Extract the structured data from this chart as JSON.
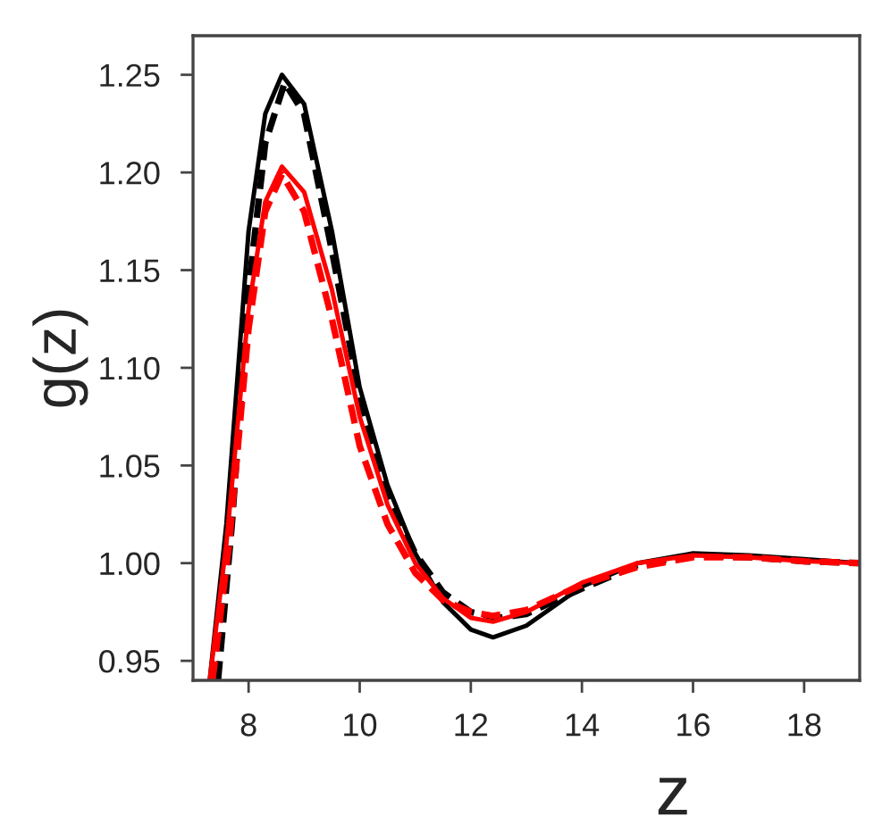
{
  "chart_data": {
    "type": "line",
    "xlabel": "z",
    "ylabel": "g(z)",
    "xlim": [
      7.0,
      19.0
    ],
    "ylim": [
      0.94,
      1.27
    ],
    "xticks": [
      8,
      10,
      12,
      14,
      16,
      18
    ],
    "yticks": [
      {
        "value": 0.95,
        "label": "0.95"
      },
      {
        "value": 1.0,
        "label": "1.00"
      },
      {
        "value": 1.05,
        "label": "1.05"
      },
      {
        "value": 1.1,
        "label": "1.10"
      },
      {
        "value": 1.15,
        "label": "1.15"
      },
      {
        "value": 1.2,
        "label": "1.20"
      },
      {
        "value": 1.25,
        "label": "1.25"
      }
    ],
    "grid": false,
    "legend": false,
    "series": [
      {
        "color": "#000000",
        "line_style": "solid",
        "x": [
          7.3,
          7.6,
          8.0,
          8.3,
          8.6,
          9.0,
          9.5,
          10.0,
          10.5,
          11.0,
          11.5,
          12.0,
          12.4,
          13.0,
          14.0,
          15.0,
          16.0,
          17.0,
          18.0,
          19.0
        ],
        "values": [
          0.94,
          1.02,
          1.17,
          1.23,
          1.25,
          1.235,
          1.17,
          1.09,
          1.04,
          1.005,
          0.98,
          0.966,
          0.962,
          0.968,
          0.988,
          1.0,
          1.005,
          1.004,
          1.002,
          1.0
        ]
      },
      {
        "color": "#000000",
        "line_style": "dashed",
        "x": [
          7.45,
          7.7,
          8.0,
          8.3,
          8.65,
          9.0,
          9.5,
          10.0,
          10.5,
          11.0,
          11.5,
          12.0,
          12.5,
          13.0,
          14.0,
          15.0,
          16.0,
          17.0,
          18.0,
          19.0
        ],
        "values": [
          0.94,
          1.02,
          1.14,
          1.215,
          1.246,
          1.23,
          1.16,
          1.085,
          1.035,
          1.005,
          0.985,
          0.975,
          0.972,
          0.974,
          0.987,
          0.999,
          1.004,
          1.003,
          1.001,
          1.0
        ]
      },
      {
        "color": "#ff0000",
        "line_style": "solid",
        "x": [
          7.3,
          7.6,
          8.0,
          8.3,
          8.6,
          9.0,
          9.5,
          10.0,
          10.5,
          11.0,
          11.5,
          12.0,
          12.4,
          13.0,
          14.0,
          15.0,
          16.0,
          17.0,
          18.0,
          19.0
        ],
        "values": [
          0.94,
          1.01,
          1.13,
          1.185,
          1.203,
          1.19,
          1.14,
          1.075,
          1.03,
          1.0,
          0.982,
          0.972,
          0.97,
          0.975,
          0.99,
          1.0,
          1.004,
          1.003,
          1.001,
          1.0
        ]
      },
      {
        "color": "#ff0000",
        "line_style": "dashed",
        "x": [
          7.35,
          7.65,
          8.0,
          8.3,
          8.6,
          9.0,
          9.5,
          10.0,
          10.5,
          11.0,
          11.5,
          12.0,
          12.4,
          13.0,
          14.0,
          15.0,
          16.0,
          17.0,
          18.0,
          19.0
        ],
        "values": [
          0.94,
          1.01,
          1.12,
          1.18,
          1.199,
          1.18,
          1.125,
          1.06,
          1.02,
          0.995,
          0.981,
          0.975,
          0.973,
          0.976,
          0.989,
          0.998,
          1.003,
          1.003,
          1.001,
          1.0
        ]
      }
    ]
  }
}
